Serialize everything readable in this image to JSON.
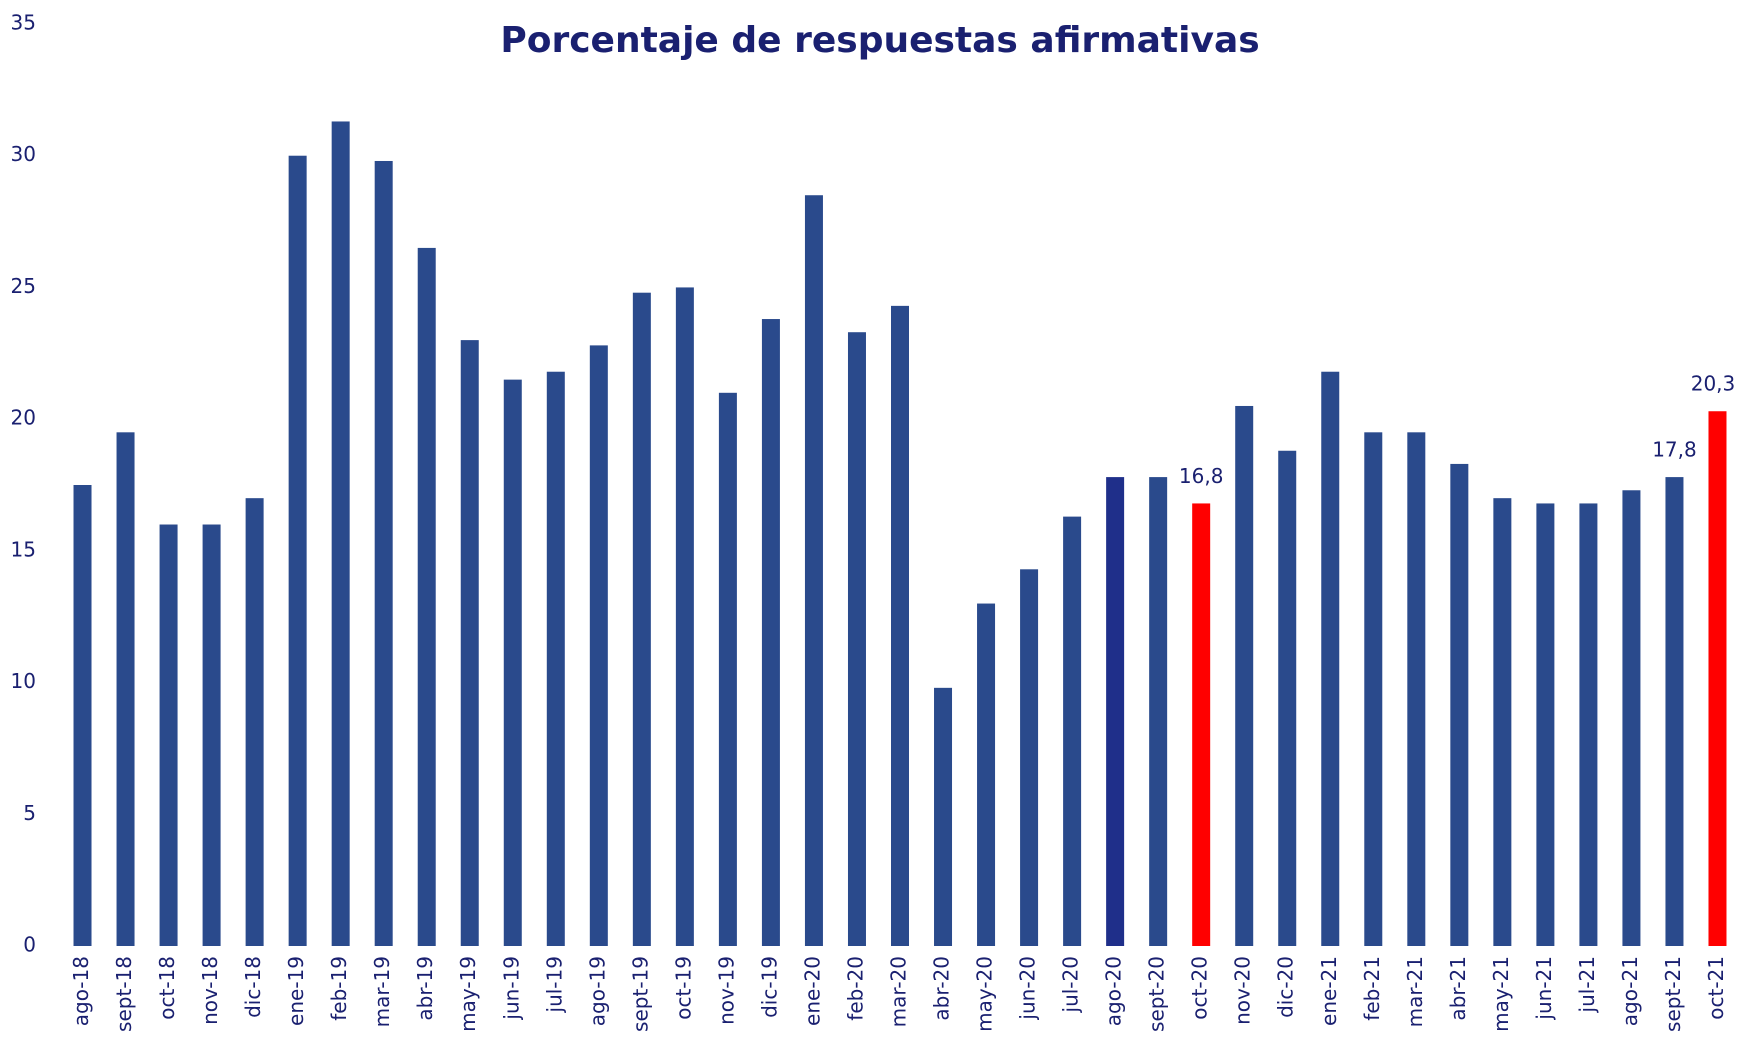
{
  "chart_data": {
    "type": "bar",
    "title": "Porcentaje de respuestas afirmativas",
    "categories": [
      "ago-18",
      "sept-18",
      "oct-18",
      "nov-18",
      "dic-18",
      "ene-19",
      "feb-19",
      "mar-19",
      "abr-19",
      "may-19",
      "jun-19",
      "jul-19",
      "ago-19",
      "sept-19",
      "oct-19",
      "nov-19",
      "dic-19",
      "ene-20",
      "feb-20",
      "mar-20",
      "abr-20",
      "may-20",
      "jun-20",
      "jul-20",
      "ago-20",
      "sept-20",
      "oct-20",
      "nov-20",
      "dic-20",
      "ene-21",
      "feb-21",
      "mar-21",
      "abr-21",
      "may-21",
      "jun-21",
      "jul-21",
      "ago-21",
      "sept-21",
      "oct-21"
    ],
    "values": [
      17.5,
      19.5,
      16,
      16,
      17,
      30,
      31.3,
      29.8,
      26.5,
      23,
      21.5,
      21.8,
      22.8,
      24.8,
      25,
      21,
      23.8,
      28.5,
      23.3,
      24.3,
      9.8,
      13,
      14.3,
      16.3,
      17.8,
      17.8,
      16.8,
      20.5,
      18.8,
      21.8,
      19.5,
      19.5,
      18.3,
      17,
      16.8,
      16.8,
      17.3,
      17.8,
      20.3
    ],
    "value_labels": [
      null,
      null,
      null,
      null,
      null,
      null,
      null,
      null,
      null,
      null,
      null,
      null,
      null,
      null,
      null,
      null,
      null,
      null,
      null,
      null,
      null,
      null,
      null,
      null,
      null,
      null,
      "16,8",
      null,
      null,
      null,
      null,
      null,
      null,
      null,
      null,
      null,
      null,
      "17,8",
      "20,3"
    ],
    "colors": [
      "#2a4a8c",
      "#2a4a8c",
      "#2a4a8c",
      "#2a4a8c",
      "#2a4a8c",
      "#2a4a8c",
      "#2a4a8c",
      "#2a4a8c",
      "#2a4a8c",
      "#2a4a8c",
      "#2a4a8c",
      "#2a4a8c",
      "#2a4a8c",
      "#2a4a8c",
      "#2a4a8c",
      "#2a4a8c",
      "#2a4a8c",
      "#2a4a8c",
      "#2a4a8c",
      "#2a4a8c",
      "#2a4a8c",
      "#2a4a8c",
      "#2a4a8c",
      "#2a4a8c",
      "#1f2f8a",
      "#2a4a8c",
      "#ff0000",
      "#2a4a8c",
      "#2a4a8c",
      "#2a4a8c",
      "#2a4a8c",
      "#2a4a8c",
      "#2a4a8c",
      "#2a4a8c",
      "#2a4a8c",
      "#2a4a8c",
      "#2a4a8c",
      "#2a4a8c",
      "#ff0000"
    ],
    "ylim": [
      0,
      35
    ],
    "yticks": [
      0,
      5,
      10,
      15,
      20,
      25,
      30,
      35
    ],
    "grid": false
  }
}
